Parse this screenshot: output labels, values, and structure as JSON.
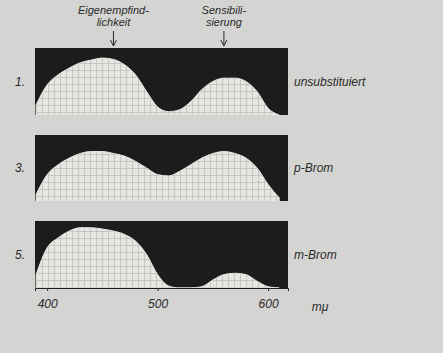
{
  "chart_data": {
    "type": "area",
    "x_label": "mμ",
    "x": [
      390,
      400,
      410,
      420,
      430,
      440,
      450,
      460,
      470,
      480,
      490,
      500,
      510,
      520,
      530,
      540,
      550,
      560,
      570,
      580,
      590,
      600,
      610
    ],
    "xlim": [
      389,
      618
    ],
    "xticks": [
      400,
      500,
      600
    ],
    "ylim": [
      0,
      1
    ],
    "tick_labels": "x",
    "annotations": [
      {
        "text": [
          "Eigenempfind-",
          "lichkeit"
        ],
        "x": 460
      },
      {
        "text": [
          "Sensibili-",
          "sierung"
        ],
        "x": 560
      }
    ],
    "series": [
      {
        "number": "1.",
        "name": "unsubstituiert",
        "color": "#e6e6e2",
        "values": [
          0.15,
          0.45,
          0.6,
          0.7,
          0.78,
          0.82,
          0.85,
          0.83,
          0.75,
          0.6,
          0.35,
          0.12,
          0.05,
          0.08,
          0.2,
          0.38,
          0.5,
          0.55,
          0.55,
          0.5,
          0.35,
          0.1,
          0
        ]
      },
      {
        "number": "3.",
        "name": "p-Brom",
        "color": "#e6e6e2",
        "values": [
          0.1,
          0.4,
          0.55,
          0.65,
          0.72,
          0.75,
          0.75,
          0.72,
          0.68,
          0.6,
          0.5,
          0.4,
          0.38,
          0.45,
          0.55,
          0.65,
          0.72,
          0.75,
          0.72,
          0.65,
          0.5,
          0.25,
          0.05
        ]
      },
      {
        "number": "5.",
        "name": "m-Brom",
        "color": "#e6e6e2",
        "values": [
          0.2,
          0.6,
          0.75,
          0.85,
          0.9,
          0.9,
          0.88,
          0.85,
          0.8,
          0.7,
          0.5,
          0.2,
          0.03,
          0,
          0,
          0.02,
          0.12,
          0.2,
          0.22,
          0.2,
          0.1,
          0.02,
          0
        ]
      }
    ]
  }
}
